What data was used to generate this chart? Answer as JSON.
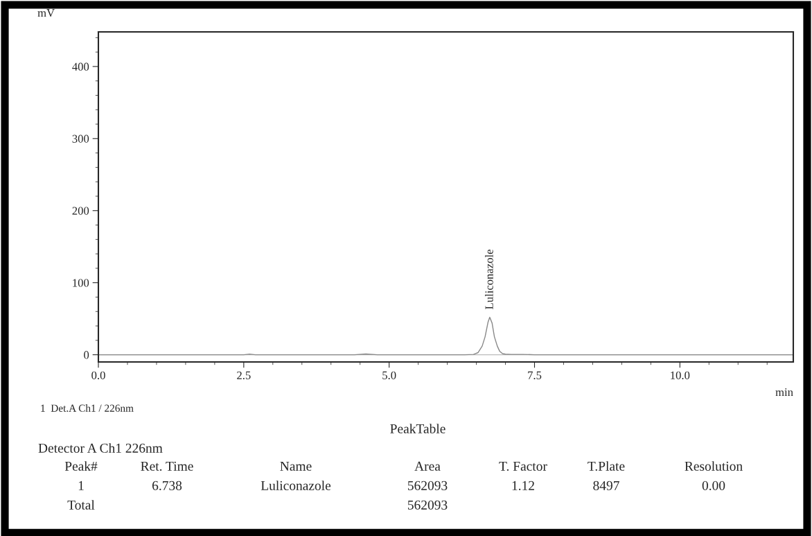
{
  "chart_data": {
    "type": "line",
    "xlabel": "min",
    "ylabel": "mV",
    "x": [
      0,
      2.5,
      2.6,
      2.7,
      4.4,
      4.6,
      4.8,
      5.0,
      6.3,
      6.45,
      6.53,
      6.6,
      6.65,
      6.7,
      6.73,
      6.77,
      6.81,
      6.86,
      6.9,
      6.95,
      7.0,
      7.1,
      7.3,
      7.5,
      11.95
    ],
    "series": [
      {
        "color": "#888888",
        "values": [
          0,
          0,
          1,
          0,
          0,
          1,
          0,
          0,
          0,
          0.5,
          3,
          12,
          25,
          45,
          52,
          44,
          25,
          12,
          5,
          1.5,
          0.8,
          0.5,
          0.5,
          0,
          0
        ]
      }
    ],
    "xlim": [
      0,
      11.95
    ],
    "ylim": [
      -10,
      448
    ],
    "xticks": [
      {
        "value": 0,
        "label": "0.0"
      },
      {
        "value": 2.5,
        "label": "2.5"
      },
      {
        "value": 5,
        "label": "5.0"
      },
      {
        "value": 7.5,
        "label": "7.5"
      },
      {
        "value": 10,
        "label": "10.0"
      }
    ],
    "yticks": [
      0,
      100,
      200,
      300,
      400
    ],
    "ref_lines": [
      {
        "axis": "y",
        "value": 0,
        "color": "#bbbbbb"
      }
    ],
    "grid": false,
    "legend": false,
    "annotations": [
      {
        "text": "Luliconazole",
        "x": 6.738,
        "y": 52
      },
      "1  Det.A Ch1 / 226nm",
      "PeakTable",
      "Detector A Ch1 226nm",
      "Peak#",
      "Ret. Time",
      "Name",
      "Area",
      "T. Factor",
      "T.Plate",
      "Resolution",
      "1",
      "6.738",
      "Luliconazole",
      "562093",
      "1.12",
      "8497",
      "0.00",
      "Total",
      "562093"
    ]
  }
}
